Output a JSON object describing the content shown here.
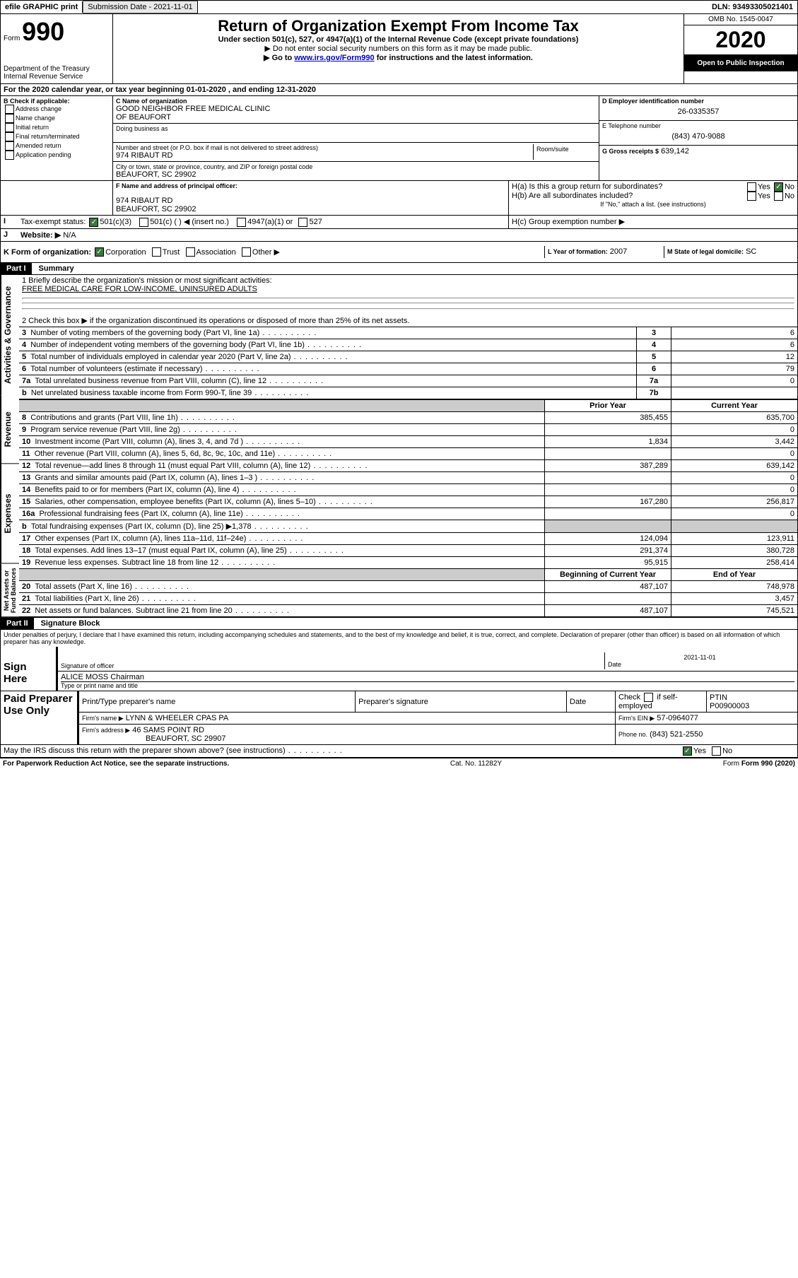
{
  "topbar": {
    "efile": "efile GRAPHIC print",
    "submission_label": "Submission Date - 2021-11-01",
    "dln_label": "DLN: 93493305021401"
  },
  "header": {
    "form_word": "Form",
    "form_no": "990",
    "dept1": "Department of the Treasury",
    "dept2": "Internal Revenue Service",
    "title": "Return of Organization Exempt From Income Tax",
    "subtitle": "Under section 501(c), 527, or 4947(a)(1) of the Internal Revenue Code (except private foundations)",
    "note1": "▶ Do not enter social security numbers on this form as it may be made public.",
    "note2_pre": "▶ Go to ",
    "note2_link": "www.irs.gov/Form990",
    "note2_post": " for instructions and the latest information.",
    "omb": "OMB No. 1545-0047",
    "year": "2020",
    "open": "Open to Public Inspection"
  },
  "periodA": "For the 2020 calendar year, or tax year beginning 01-01-2020    , and ending 12-31-2020",
  "boxB": {
    "label": "B Check if applicable:",
    "opts": [
      "Address change",
      "Name change",
      "Initial return",
      "Final return/terminated",
      "Amended return",
      "Application pending"
    ]
  },
  "boxC": {
    "name_label": "C Name of organization",
    "name1": "GOOD NEIGHBOR FREE MEDICAL CLINIC",
    "name2": "OF BEAUFORT",
    "dba_label": "Doing business as",
    "street_label": "Number and street (or P.O. box if mail is not delivered to street address)",
    "room_label": "Room/suite",
    "street": "974 RIBAUT RD",
    "city_label": "City or town, state or province, country, and ZIP or foreign postal code",
    "city": "BEAUFORT, SC  29902"
  },
  "boxD": {
    "label": "D Employer identification number",
    "value": "26-0335357"
  },
  "boxE": {
    "label": "E Telephone number",
    "value": "(843) 470-9088"
  },
  "boxG": {
    "label": "G Gross receipts $",
    "value": "639,142"
  },
  "boxF": {
    "label": "F Name and address of principal officer:",
    "line1": "974 RIBAUT RD",
    "line2": "BEAUFORT, SC  29902"
  },
  "boxH": {
    "a_label": "H(a)  Is this a group return for subordinates?",
    "b_label": "H(b)  Are all subordinates included?",
    "b_note": "If \"No,\" attach a list. (see instructions)",
    "c_label": "H(c)  Group exemption number ▶",
    "yes": "Yes",
    "no": "No"
  },
  "boxI": {
    "label": "Tax-exempt status:",
    "o1": "501(c)(3)",
    "o2": "501(c) (  ) ◀ (insert no.)",
    "o3": "4947(a)(1) or",
    "o4": "527"
  },
  "boxJ": {
    "label": "Website: ▶",
    "value": "N/A"
  },
  "boxK": {
    "label": "K Form of organization:",
    "o1": "Corporation",
    "o2": "Trust",
    "o3": "Association",
    "o4": "Other ▶"
  },
  "boxL": {
    "label": "L Year of formation:",
    "value": "2007"
  },
  "boxM": {
    "label": "M State of legal domicile:",
    "value": "SC"
  },
  "part1": {
    "tag": "Part I",
    "title": "Summary"
  },
  "summary": {
    "q1_label": "1  Briefly describe the organization's mission or most significant activities:",
    "q1_value": "FREE MEDICAL CARE FOR LOW-INCOME, UNINSURED ADULTS",
    "q2": "2   Check this box ▶         if the organization discontinued its operations or disposed of more than 25% of its net assets.",
    "rows_ag": [
      {
        "n": "3",
        "t": "Number of voting members of the governing body (Part VI, line 1a)",
        "k": "3",
        "v": "6"
      },
      {
        "n": "4",
        "t": "Number of independent voting members of the governing body (Part VI, line 1b)",
        "k": "4",
        "v": "6"
      },
      {
        "n": "5",
        "t": "Total number of individuals employed in calendar year 2020 (Part V, line 2a)",
        "k": "5",
        "v": "12"
      },
      {
        "n": "6",
        "t": "Total number of volunteers (estimate if necessary)",
        "k": "6",
        "v": "79"
      },
      {
        "n": "7a",
        "t": "Total unrelated business revenue from Part VIII, column (C), line 12",
        "k": "7a",
        "v": "0"
      },
      {
        "n": "b",
        "t": "Net unrelated business taxable income from Form 990-T, line 39",
        "k": "7b",
        "v": ""
      }
    ],
    "col_prior": "Prior Year",
    "col_current": "Current Year",
    "col_begin": "Beginning of Current Year",
    "col_end": "End of Year",
    "revenue": [
      {
        "n": "8",
        "t": "Contributions and grants (Part VIII, line 1h)",
        "p": "385,455",
        "c": "635,700"
      },
      {
        "n": "9",
        "t": "Program service revenue (Part VIII, line 2g)",
        "p": "",
        "c": "0"
      },
      {
        "n": "10",
        "t": "Investment income (Part VIII, column (A), lines 3, 4, and 7d )",
        "p": "1,834",
        "c": "3,442"
      },
      {
        "n": "11",
        "t": "Other revenue (Part VIII, column (A), lines 5, 6d, 8c, 9c, 10c, and 11e)",
        "p": "",
        "c": "0"
      },
      {
        "n": "12",
        "t": "Total revenue—add lines 8 through 11 (must equal Part VIII, column (A), line 12)",
        "p": "387,289",
        "c": "639,142"
      }
    ],
    "expenses": [
      {
        "n": "13",
        "t": "Grants and similar amounts paid (Part IX, column (A), lines 1–3 )",
        "p": "",
        "c": "0"
      },
      {
        "n": "14",
        "t": "Benefits paid to or for members (Part IX, column (A), line 4)",
        "p": "",
        "c": "0"
      },
      {
        "n": "15",
        "t": "Salaries, other compensation, employee benefits (Part IX, column (A), lines 5–10)",
        "p": "167,280",
        "c": "256,817"
      },
      {
        "n": "16a",
        "t": "Professional fundraising fees (Part IX, column (A), line 11e)",
        "p": "",
        "c": "0"
      },
      {
        "n": "b",
        "t": "Total fundraising expenses (Part IX, column (D), line 25) ▶1,378",
        "p": "GREY",
        "c": "GREY"
      },
      {
        "n": "17",
        "t": "Other expenses (Part IX, column (A), lines 11a–11d, 11f–24e)",
        "p": "124,094",
        "c": "123,911"
      },
      {
        "n": "18",
        "t": "Total expenses. Add lines 13–17 (must equal Part IX, column (A), line 25)",
        "p": "291,374",
        "c": "380,728"
      },
      {
        "n": "19",
        "t": "Revenue less expenses. Subtract line 18 from line 12",
        "p": "95,915",
        "c": "258,414"
      }
    ],
    "netassets": [
      {
        "n": "20",
        "t": "Total assets (Part X, line 16)",
        "p": "487,107",
        "c": "748,978"
      },
      {
        "n": "21",
        "t": "Total liabilities (Part X, line 26)",
        "p": "",
        "c": "3,457"
      },
      {
        "n": "22",
        "t": "Net assets or fund balances. Subtract line 21 from line 20",
        "p": "487,107",
        "c": "745,521"
      }
    ],
    "side_ag": "Activities & Governance",
    "side_rev": "Revenue",
    "side_exp": "Expenses",
    "side_na": "Net Assets or Fund Balances"
  },
  "part2": {
    "tag": "Part II",
    "title": "Signature Block"
  },
  "perjury": "Under penalties of perjury, I declare that I have examined this return, including accompanying schedules and statements, and to the best of my knowledge and belief, it is true, correct, and complete. Declaration of preparer (other than officer) is based on all information of which preparer has any knowledge.",
  "sign": {
    "here": "Sign Here",
    "sig_officer": "Signature of officer",
    "date": "Date",
    "date_val": "2021-11-01",
    "name": "ALICE MOSS Chairman",
    "name_label": "Type or print name and title"
  },
  "paid": {
    "title": "Paid Preparer Use Only",
    "h1": "Print/Type preparer's name",
    "h2": "Preparer's signature",
    "h3": "Date",
    "h4_a": "Check",
    "h4_b": "if self-employed",
    "h5": "PTIN",
    "ptin": "P00900003",
    "firm_name_l": "Firm's name    ▶",
    "firm_name": "LYNN & WHEELER CPAS PA",
    "firm_ein_l": "Firm's EIN ▶",
    "firm_ein": "57-0964077",
    "firm_addr_l": "Firm's address ▶",
    "firm_addr1": "46 SAMS POINT RD",
    "firm_addr2": "BEAUFORT, SC  29907",
    "phone_l": "Phone no.",
    "phone": "(843) 521-2550"
  },
  "discuss": "May the IRS discuss this return with the preparer shown above? (see instructions)",
  "footer": {
    "left": "For Paperwork Reduction Act Notice, see the separate instructions.",
    "mid": "Cat. No. 11282Y",
    "right": "Form 990 (2020)"
  }
}
